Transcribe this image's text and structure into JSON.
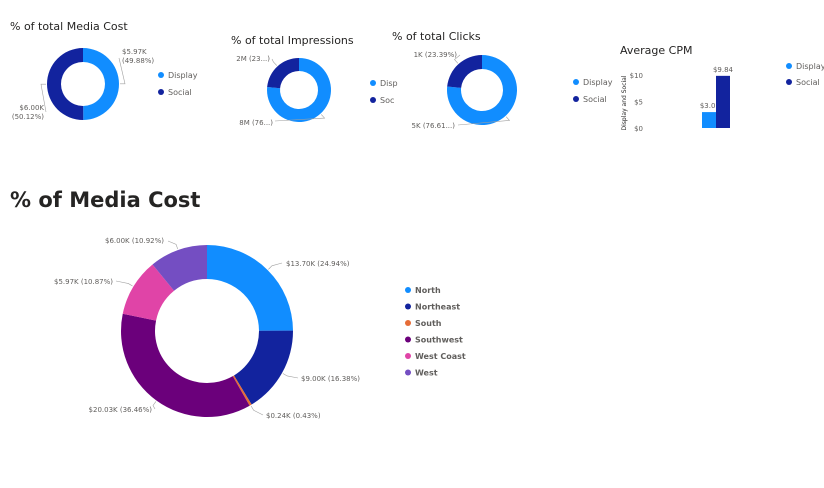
{
  "colors": {
    "display": "#118dff",
    "social": "#12239e",
    "north": "#118dff",
    "northeast": "#12239e",
    "south": "#e66c37",
    "southwest": "#6b007b",
    "west_coast": "#e044a7",
    "west": "#744ec2"
  },
  "chart_data": [
    {
      "type": "pie",
      "title": "% of total Media Cost",
      "categories": [
        "Display",
        "Social"
      ],
      "values": [
        49.88,
        50.12
      ],
      "labels": [
        "$5.97K (49.88%)",
        "$6.00K (50.12%)"
      ],
      "legend": [
        "Display",
        "Social"
      ],
      "legend_position": "right"
    },
    {
      "type": "pie",
      "title": "% of total Impressions",
      "categories": [
        "Display",
        "Social"
      ],
      "values": [
        76.5,
        23.5
      ],
      "labels": [
        "8M (76...)",
        "2M (23...)"
      ],
      "legend": [
        "Disp",
        "Soc"
      ],
      "legend_position": "right"
    },
    {
      "type": "pie",
      "title": "% of total Clicks",
      "categories": [
        "Display",
        "Social"
      ],
      "values": [
        76.61,
        23.39
      ],
      "labels": [
        "5K (76.61...)",
        "1K (23.39%)"
      ],
      "legend": [
        "Display",
        "Social"
      ],
      "legend_position": "right"
    },
    {
      "type": "bar",
      "title": "Average CPM",
      "categories": [
        "Display",
        "Social"
      ],
      "values": [
        3.0,
        9.84
      ],
      "labels": [
        "$3.0(",
        "$9.84"
      ],
      "ylabel": "Display and Social",
      "yticks": [
        "$0",
        "$5",
        "$10"
      ],
      "ylim": [
        0,
        10
      ],
      "legend": [
        "Display",
        "Social"
      ],
      "legend_position": "right",
      "grid": false
    },
    {
      "type": "pie",
      "title": "% of Media Cost",
      "categories": [
        "North",
        "Northeast",
        "South",
        "Southwest",
        "West Coast",
        "West"
      ],
      "values": [
        24.94,
        16.38,
        0.43,
        36.46,
        10.87,
        10.92
      ],
      "labels": [
        "$13.70K (24.94%)",
        "$9.00K (16.38%)",
        "$0.24K (0.43%)",
        "$20.03K (36.46%)",
        "$5.97K (10.87%)",
        "$6.00K (10.92%)"
      ],
      "legend": [
        "North",
        "Northeast",
        "South",
        "Southwest",
        "West Coast",
        "West"
      ],
      "legend_position": "right"
    }
  ]
}
